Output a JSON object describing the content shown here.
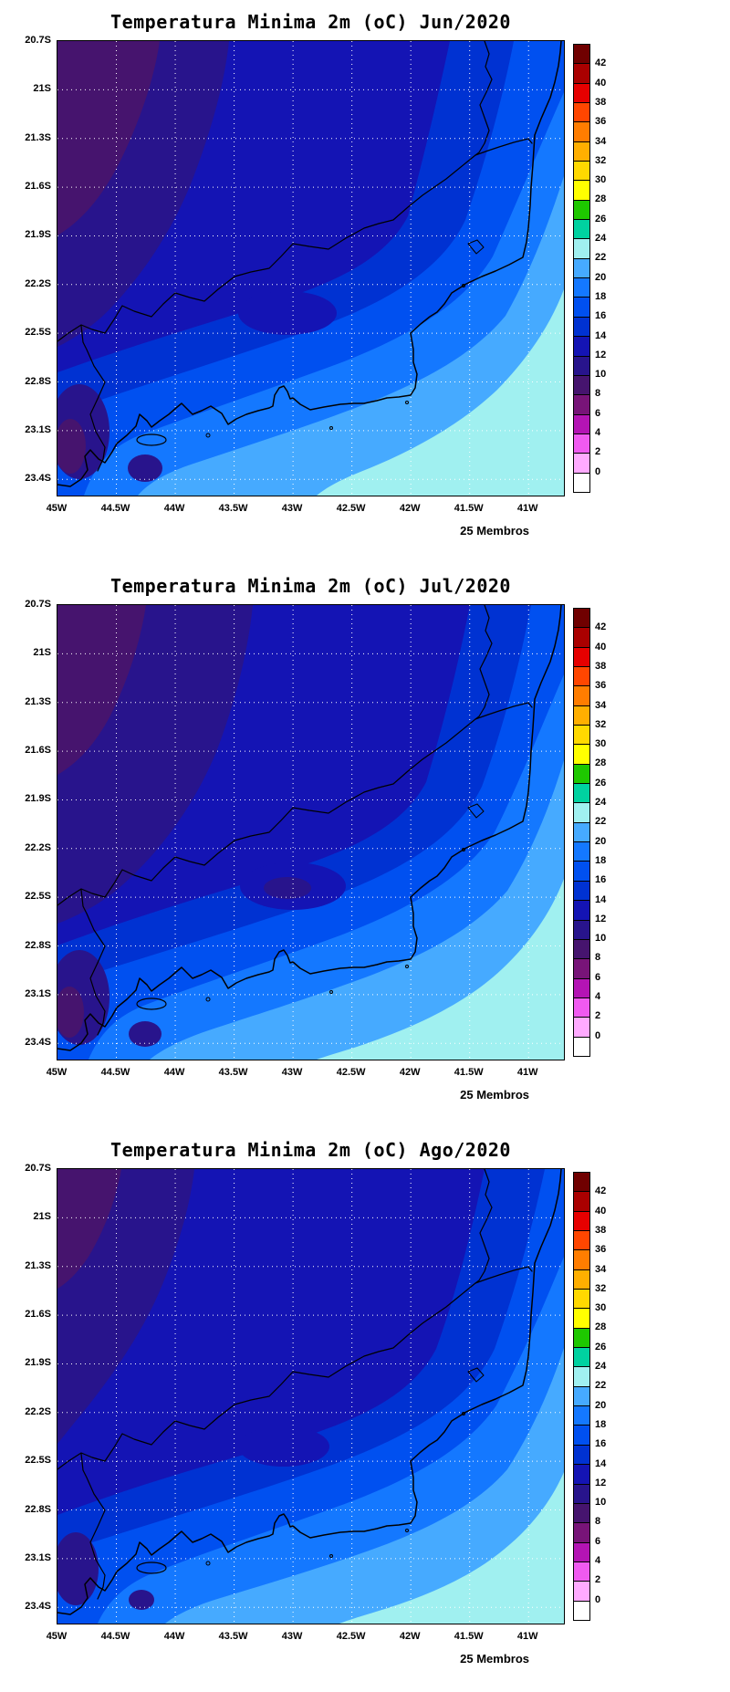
{
  "page": {
    "background": "#FFFFFF"
  },
  "panels": [
    {
      "id": "jun",
      "title": "Temperatura Minima 2m (oC) Jun/2020",
      "members_label": "25 Membros"
    },
    {
      "id": "jul",
      "title": "Temperatura Minima 2m (oC) Jul/2020",
      "members_label": "25 Membros"
    },
    {
      "id": "ago",
      "title": "Temperatura Minima 2m (oC) Ago/2020",
      "members_label": "25 Membros"
    }
  ],
  "axes": {
    "lat_labels": [
      "20.7S",
      "21S",
      "21.3S",
      "21.6S",
      "21.9S",
      "22.2S",
      "22.5S",
      "22.8S",
      "23.1S",
      "23.4S"
    ],
    "lon_labels": [
      "45W",
      "44.5W",
      "44W",
      "43.5W",
      "43W",
      "42.5W",
      "42W",
      "41.5W",
      "41W"
    ]
  },
  "colorbar": {
    "labels_top_to_bottom": [
      "42",
      "40",
      "38",
      "36",
      "34",
      "32",
      "30",
      "28",
      "26",
      "24",
      "22",
      "20",
      "18",
      "16",
      "14",
      "12",
      "10",
      "8",
      "6",
      "4",
      "2",
      "0"
    ],
    "colors_top_to_bottom": [
      "#700000",
      "#AA0000",
      "#E60000",
      "#FF4600",
      "#FF7D00",
      "#FFAF00",
      "#FFD900",
      "#FFFF00",
      "#1EC800",
      "#00D2A0",
      "#A0F0F0",
      "#46AAFF",
      "#1478FF",
      "#0050F0",
      "#0032D2",
      "#1414B4",
      "#28148C",
      "#46146E",
      "#781478",
      "#B414B4",
      "#F05AF0",
      "#FFAAFF",
      "#FFFFFF"
    ],
    "band_colors": {
      "8-10": "#46146E",
      "10-12": "#28148C",
      "12-14": "#1414B4",
      "14-16": "#0032D2",
      "16-18": "#0050F0",
      "18-20": "#1478FF",
      "20-22": "#46AAFF",
      "22-24": "#A0F0F0"
    },
    "units": "oC"
  },
  "chart_data": [
    {
      "type": "heatmap",
      "subtype": "filled_contour_map",
      "title": "Temperatura Minima 2m (oC) Jun/2020",
      "variable": "Temperatura Minima 2m",
      "units": "oC",
      "period": "Jun/2020",
      "ensemble_label": "25 Membros",
      "x_ticks": [
        "45W",
        "44.5W",
        "44W",
        "43.5W",
        "43W",
        "42.5W",
        "42W",
        "41.5W",
        "41W"
      ],
      "y_ticks": [
        "20.7S",
        "21S",
        "21.3S",
        "21.6S",
        "21.9S",
        "22.2S",
        "22.5S",
        "22.8S",
        "23.1S",
        "23.4S"
      ],
      "contour_levels": [
        0,
        2,
        4,
        6,
        8,
        10,
        12,
        14,
        16,
        18,
        20,
        22,
        24,
        26,
        28,
        30,
        32,
        34,
        36,
        38,
        40,
        42
      ],
      "contour_interval": 2,
      "value_range_shown": [
        8,
        24
      ],
      "pattern": "coldest bands 8-12 oC (dark purple) over the northwest/top-left highlands and small pockets near the southwest coast; values increase toward the southeast; warmest band 22-24 oC (pale cyan) over the ocean in the bottom-right corner",
      "grid": "white dotted graticule, 0.5 deg lon by 0.3 deg lat",
      "legend_position": "right vertical colorbar"
    },
    {
      "type": "heatmap",
      "subtype": "filled_contour_map",
      "title": "Temperatura Minima 2m (oC) Jul/2020",
      "variable": "Temperatura Minima 2m",
      "units": "oC",
      "period": "Jul/2020",
      "ensemble_label": "25 Membros",
      "x_ticks": [
        "45W",
        "44.5W",
        "44W",
        "43.5W",
        "43W",
        "42.5W",
        "42W",
        "41.5W",
        "41W"
      ],
      "y_ticks": [
        "20.7S",
        "21S",
        "21.3S",
        "21.6S",
        "21.9S",
        "22.2S",
        "22.5S",
        "22.8S",
        "23.1S",
        "23.4S"
      ],
      "contour_levels": [
        0,
        2,
        4,
        6,
        8,
        10,
        12,
        14,
        16,
        18,
        20,
        22,
        24,
        26,
        28,
        30,
        32,
        34,
        36,
        38,
        40,
        42
      ],
      "contour_interval": 2,
      "value_range_shown": [
        8,
        24
      ],
      "pattern": "similar to June with a slightly larger cold purple area in the northwest and a cold dark-blue tongue dipping toward the central coast; 22-24 oC cyan region slightly smaller in the bottom-right ocean corner",
      "grid": "white dotted graticule, 0.5 deg lon by 0.3 deg lat",
      "legend_position": "right vertical colorbar"
    },
    {
      "type": "heatmap",
      "subtype": "filled_contour_map",
      "title": "Temperatura Minima 2m (oC) Ago/2020",
      "variable": "Temperatura Minima 2m",
      "units": "oC",
      "period": "Ago/2020",
      "ensemble_label": "25 Membros",
      "x_ticks": [
        "45W",
        "44.5W",
        "44W",
        "43.5W",
        "43W",
        "42.5W",
        "42W",
        "41.5W",
        "41W"
      ],
      "y_ticks": [
        "20.7S",
        "21S",
        "21.3S",
        "21.6S",
        "21.9S",
        "22.2S",
        "22.5S",
        "22.8S",
        "23.1S",
        "23.4S"
      ],
      "contour_levels": [
        0,
        2,
        4,
        6,
        8,
        10,
        12,
        14,
        16,
        18,
        20,
        22,
        24,
        26,
        28,
        30,
        32,
        34,
        36,
        38,
        40,
        42
      ],
      "contour_interval": 2,
      "value_range_shown": [
        8,
        24
      ],
      "pattern": "cold purple area reduced to the top-left corner; broad uniform dark-blue 12-14 oC field inland; warm coastal bands narrower with the 22-24 oC cyan region confined to the bottom-right corner",
      "grid": "white dotted graticule, 0.5 deg lon by 0.3 deg lat",
      "legend_position": "right vertical colorbar"
    }
  ]
}
